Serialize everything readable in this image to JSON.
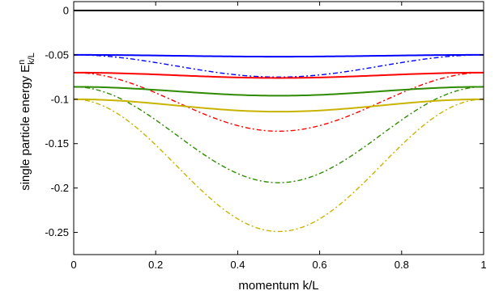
{
  "chart_data": {
    "type": "line",
    "xlabel": "momentum k/L",
    "ylabel": {
      "main": "single particle energy E",
      "sup": "n",
      "sub": "k/L"
    },
    "xlim": [
      0,
      1
    ],
    "ylim": [
      -0.275,
      0.01
    ],
    "xticks": [
      {
        "value": 0,
        "label": "0"
      },
      {
        "value": 0.2,
        "label": "0.2"
      },
      {
        "value": 0.4,
        "label": "0.4"
      },
      {
        "value": 0.6,
        "label": "0.6"
      },
      {
        "value": 0.8,
        "label": "0.8"
      },
      {
        "value": 1,
        "label": "1"
      }
    ],
    "yticks": [
      {
        "value": 0,
        "label": "0"
      },
      {
        "value": -0.05,
        "label": "-0.05"
      },
      {
        "value": -0.1,
        "label": "-0.1"
      },
      {
        "value": -0.15,
        "label": "-0.15"
      },
      {
        "value": -0.2,
        "label": "-0.2"
      },
      {
        "value": -0.25,
        "label": "-0.25"
      }
    ],
    "grid": false,
    "box": true,
    "series": [
      {
        "color": "#000000",
        "style": "solid",
        "edge": 0,
        "center": 0
      },
      {
        "color": "#0000ff",
        "style": "solid",
        "edge": -0.05,
        "center": -0.052
      },
      {
        "color": "#0000ff",
        "style": "dashdot",
        "edge": -0.05,
        "center": -0.075
      },
      {
        "color": "#ff0000",
        "style": "solid",
        "edge": -0.07,
        "center": -0.076
      },
      {
        "color": "#ff0000",
        "style": "dashdot",
        "edge": -0.07,
        "center": -0.136
      },
      {
        "color": "#2e8b00",
        "style": "solid",
        "edge": -0.086,
        "center": -0.096
      },
      {
        "color": "#2e8b00",
        "style": "dashdot",
        "edge": -0.086,
        "center": -0.194
      },
      {
        "color": "#c8b400",
        "style": "solid",
        "edge": -0.1,
        "center": -0.114
      },
      {
        "color": "#c8b400",
        "style": "dashdot",
        "edge": -0.1,
        "center": -0.249
      }
    ]
  }
}
